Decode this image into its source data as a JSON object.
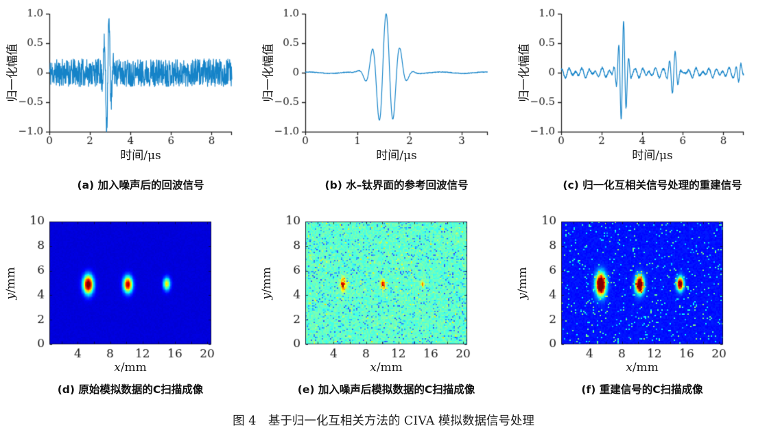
{
  "figure": {
    "caption": "图 4　基于归一化互相关方法的 CIVA 模拟数据信号处理"
  },
  "chart_data": [
    {
      "id": "a",
      "type": "line",
      "caption": "(a) 加入噪声后的回波信号",
      "xlabel": "时间/μs",
      "ylabel": "归一化幅值",
      "xlim": [
        0,
        9.0
      ],
      "ylim": [
        -1.0,
        1.0
      ],
      "xticks": [
        0,
        2,
        4,
        6,
        8
      ],
      "xtick_labels": [
        "0",
        "2",
        "4",
        "6",
        "8"
      ],
      "yticks": [
        1.0,
        0.5,
        0,
        -0.5,
        -1.0
      ],
      "ytick_labels": [
        "1.0",
        "0.5",
        "0",
        "−0.5",
        "−1.0"
      ],
      "line_color": "#1583c8",
      "grid": false,
      "signal": {
        "seed": 11,
        "samples": 820,
        "noise_amp": 0.27,
        "normalize": true,
        "ripples": [],
        "pulses": [
          {
            "center": 2.88,
            "sigma": 0.2,
            "period": 0.24,
            "amp": 1.08,
            "phase": "sin"
          }
        ]
      }
    },
    {
      "id": "b",
      "type": "line",
      "caption": "(b) 水–钛界面的参考回波信号",
      "xlabel": "时间/μs",
      "ylabel": "归一化幅值",
      "xlim": [
        0,
        3.5
      ],
      "ylim": [
        -1.0,
        1.0
      ],
      "xticks": [
        0,
        1,
        2,
        3
      ],
      "xtick_labels": [
        "0",
        "1",
        "2",
        "3"
      ],
      "yticks": [
        1.0,
        0.5,
        0,
        -0.5,
        -1.0
      ],
      "ytick_labels": [
        "1.0",
        "0.5",
        "0",
        "−0.5",
        "−1.0"
      ],
      "line_color": "#1583c8",
      "grid": false,
      "signal": {
        "seed": 3,
        "samples": 620,
        "noise_amp": 0.006,
        "normalize": true,
        "ripples": [
          {
            "amp": 0.012,
            "period": 0.85,
            "phase0": 1.2
          }
        ],
        "pulses": [
          {
            "center": 1.55,
            "sigma": 0.28,
            "period": 0.27,
            "amp": 1.0,
            "phase": "cos"
          }
        ]
      }
    },
    {
      "id": "c",
      "type": "line",
      "caption": "(c) 归一化互相关信号处理的重建信号",
      "xlabel": "时间/μs",
      "ylabel": "归一化幅值",
      "xlim": [
        0,
        9.0
      ],
      "ylim": [
        -1.0,
        1.0
      ],
      "xticks": [
        0,
        2,
        4,
        6,
        8
      ],
      "xtick_labels": [
        "0",
        "2",
        "4",
        "6",
        "8"
      ],
      "yticks": [
        1.0,
        0.5,
        0,
        -0.5,
        -1.0
      ],
      "ytick_labels": [
        "1.0",
        "0.5",
        "0",
        "−0.5",
        "−1.0"
      ],
      "line_color": "#1583c8",
      "grid": false,
      "signal": {
        "seed": 5,
        "samples": 900,
        "noise_amp": 0.018,
        "normalize": false,
        "ripples": [
          {
            "amp": 0.05,
            "period": 0.33,
            "phase0": 0.7
          },
          {
            "amp": 0.034,
            "period": 0.52,
            "phase0": 2.4
          }
        ],
        "pulses": [
          {
            "center": 3.02,
            "sigma": 0.27,
            "period": 0.25,
            "amp": 0.86,
            "phase": "sin"
          },
          {
            "center": 5.55,
            "sigma": 0.3,
            "period": 0.27,
            "amp": 0.3,
            "phase": "sin"
          },
          {
            "center": 8.8,
            "sigma": 0.16,
            "period": 0.26,
            "amp": 0.17,
            "phase": "sin"
          }
        ]
      }
    },
    {
      "id": "d",
      "type": "heatmap",
      "caption": "(d) 原始模拟数据的C扫描成像",
      "xlabel_var": "x",
      "xlabel_unit": "/mm",
      "ylabel_var": "y",
      "ylabel_unit": "/mm",
      "colormap": "jet",
      "xlim": [
        0.5,
        20.5
      ],
      "ylim": [
        0,
        10
      ],
      "xticks": [
        4,
        8,
        12,
        16,
        20
      ],
      "xtick_labels": [
        "4",
        "8",
        "12",
        "16",
        "20"
      ],
      "yticks": [
        0,
        2,
        4,
        6,
        8,
        10
      ],
      "ytick_labels": [
        "0",
        "2",
        "4",
        "6",
        "8",
        "10"
      ],
      "minor_step": 2,
      "background_level": 0.09,
      "noise_base": 0.008,
      "soften": 0,
      "ragged": 0,
      "speckles": [],
      "blobs": [
        {
          "x": 5.3,
          "y": 4.9,
          "rx": 0.6,
          "ry": 0.72,
          "amp": 1.02
        },
        {
          "x": 10.2,
          "y": 4.9,
          "rx": 0.54,
          "ry": 0.63,
          "amp": 0.88
        },
        {
          "x": 15.0,
          "y": 4.95,
          "rx": 0.42,
          "ry": 0.5,
          "amp": 0.56
        }
      ]
    },
    {
      "id": "e",
      "type": "heatmap",
      "caption": "(e) 加入噪声后模拟数据的C扫描成像",
      "xlabel_var": "x",
      "xlabel_unit": "/mm",
      "ylabel_var": "y",
      "ylabel_unit": "/mm",
      "colormap": "jet",
      "xlim": [
        0.5,
        20.5
      ],
      "ylim": [
        0,
        10
      ],
      "xticks": [
        4,
        8,
        12,
        16,
        20
      ],
      "xtick_labels": [
        "4",
        "8",
        "12",
        "16",
        "20"
      ],
      "yticks": [
        0,
        2,
        4,
        6,
        8,
        10
      ],
      "ytick_labels": [
        "0",
        "2",
        "4",
        "6",
        "8",
        "10"
      ],
      "minor_step": 2,
      "background_level": 0.44,
      "noise_base": 0.05,
      "soften": 0.18,
      "ragged": 0.3,
      "speckles": [
        {
          "p": 0.1,
          "dv": [
            -0.26,
            -0.1
          ]
        },
        {
          "p": 0.025,
          "dv": [
            0.08,
            0.18
          ]
        }
      ],
      "blobs": [
        {
          "x": 5.2,
          "y": 4.9,
          "rx": 0.32,
          "ry": 0.5,
          "amp": 0.48
        },
        {
          "x": 10.1,
          "y": 4.9,
          "rx": 0.26,
          "ry": 0.38,
          "amp": 0.46
        },
        {
          "x": 15.0,
          "y": 4.95,
          "rx": 0.2,
          "ry": 0.26,
          "amp": 0.3
        }
      ]
    },
    {
      "id": "f",
      "type": "heatmap",
      "caption": "(f) 重建信号的C扫描成像",
      "xlabel_var": "x",
      "xlabel_unit": "/mm",
      "ylabel_var": "y",
      "ylabel_unit": "/mm",
      "colormap": "jet",
      "xlim": [
        0.5,
        20.5
      ],
      "ylim": [
        0,
        10
      ],
      "xticks": [
        4,
        8,
        12,
        16,
        20
      ],
      "xtick_labels": [
        "4",
        "8",
        "12",
        "16",
        "20"
      ],
      "yticks": [
        0,
        2,
        4,
        6,
        8,
        10
      ],
      "ytick_labels": [
        "0",
        "2",
        "4",
        "6",
        "8",
        "10"
      ],
      "minor_step": 2,
      "background_level": 0.14,
      "noise_base": 0.015,
      "soften": 0,
      "ragged": 0.25,
      "speckles": [
        {
          "p": 0.05,
          "dv": [
            0.14,
            0.38
          ]
        }
      ],
      "blobs": [
        {
          "x": 5.4,
          "y": 4.9,
          "rx": 0.58,
          "ry": 0.85,
          "amp": 1.25
        },
        {
          "x": 10.2,
          "y": 4.9,
          "rx": 0.5,
          "ry": 0.68,
          "amp": 1.15
        },
        {
          "x": 15.2,
          "y": 4.95,
          "rx": 0.4,
          "ry": 0.52,
          "amp": 1.0
        }
      ]
    }
  ]
}
